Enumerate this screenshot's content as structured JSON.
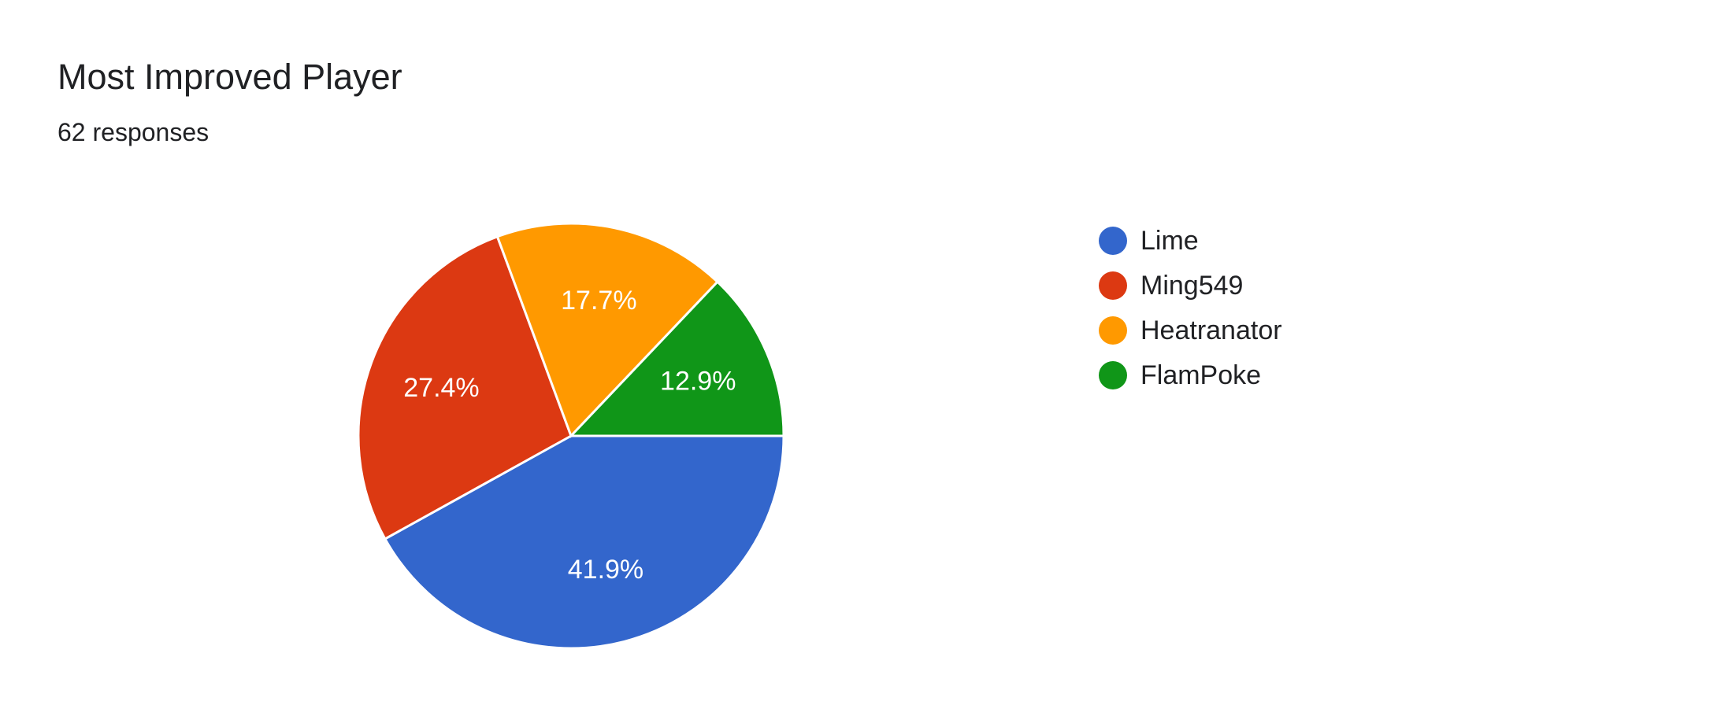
{
  "header": {
    "title": "Most Improved Player",
    "subtitle": "62 responses"
  },
  "chart_data": {
    "type": "pie",
    "title": "Most Improved Player",
    "subtitle": "62 responses",
    "legend_position": "right",
    "slices": [
      {
        "label": "Lime",
        "value": 41.9,
        "display": "41.9%",
        "color": "#3366cc"
      },
      {
        "label": "Ming549",
        "value": 27.4,
        "display": "27.4%",
        "color": "#dc3912"
      },
      {
        "label": "Heatranator",
        "value": 17.7,
        "display": "17.7%",
        "color": "#ff9900"
      },
      {
        "label": "FlamPoke",
        "value": 12.9,
        "display": "12.9%",
        "color": "#109618"
      }
    ]
  }
}
